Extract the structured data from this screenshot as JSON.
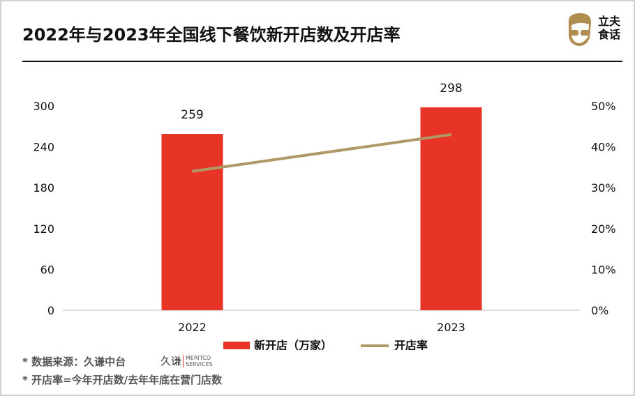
{
  "title": "2022年与2023年全国线下餐饮新开店数及开店率",
  "logo": {
    "text": "立夫食话",
    "line1": "立夫",
    "line2": "食话"
  },
  "chart_data": {
    "type": "bar+line",
    "categories": [
      "2022",
      "2023"
    ],
    "series": [
      {
        "name": "新开店（万家）",
        "type": "bar",
        "axis": "left",
        "values": [
          259,
          298
        ],
        "color": "#e83426"
      },
      {
        "name": "开店率",
        "type": "line",
        "axis": "right",
        "values": [
          34,
          43
        ],
        "color": "#b09766"
      }
    ],
    "left_axis": {
      "ticks": [
        "0",
        "60",
        "120",
        "180",
        "240",
        "300"
      ],
      "ylim": [
        0,
        300
      ]
    },
    "right_axis": {
      "ticks": [
        "0%",
        "10%",
        "20%",
        "30%",
        "40%",
        "50%"
      ],
      "ylim": [
        0,
        50
      ]
    },
    "data_labels": [
      "259",
      "298"
    ],
    "legend": "bottom"
  },
  "footer": {
    "source": "* 数据来源：久谦中台",
    "source_logo_cn": "久谦",
    "source_logo_en1": "MERITCO",
    "source_logo_en2": "SERVICES",
    "note": "* 开店率=今年开店数/去年年底在营门店数"
  }
}
